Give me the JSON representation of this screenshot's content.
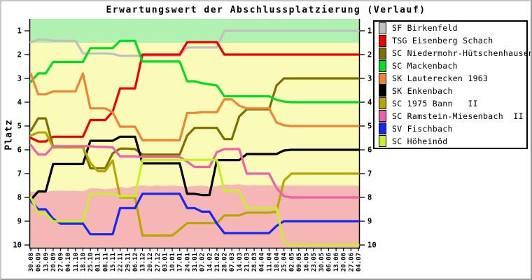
{
  "window": {
    "background": "#ffffff",
    "frame_color": "#c6c6c6"
  },
  "chart": {
    "title": "Erwartungswert der Abschlussplatzierung (Verlauf)",
    "y_axis_label": "Platz",
    "platz_ticks": [
      "1",
      "2",
      "3",
      "4",
      "5",
      "6",
      "7",
      "8",
      "9",
      "10"
    ],
    "bands": {
      "promotion_color": "#b0f0b0",
      "neutral_color": "#fafab9",
      "relegation_color": "#f7b6b6",
      "promotion_cutoff": 1.5,
      "relegation_boundary": [
        7.75,
        7.78,
        7.78,
        7.72,
        7.72,
        7.73,
        7.72,
        7.74,
        7.62,
        7.62,
        7.66,
        7.62,
        7.56,
        7.6,
        7.52,
        7.5,
        7.53,
        7.49,
        7.52,
        7.5,
        7.53,
        7.55,
        7.52,
        7.5,
        7.55,
        7.52,
        7.46,
        7.48,
        7.45,
        7.5,
        7.48,
        7.5,
        7.49,
        7.51,
        7.5,
        7.5,
        7.5,
        7.5,
        7.5,
        7.5,
        7.5,
        7.5,
        7.5,
        7.5,
        7.5
      ]
    }
  },
  "chart_data": {
    "type": "line",
    "title": "Erwartungswert der Abschlussplatzierung (Verlauf)",
    "xlabel": "",
    "ylabel": "Platz",
    "ylim": [
      10.2,
      0.5
    ],
    "y_inverted": true,
    "grid": false,
    "legend_position": "right",
    "x": [
      "30.08",
      "06.09",
      "13.09",
      "20.09",
      "27.09",
      "04.10",
      "11.10",
      "18.10",
      "25.10",
      "01.11",
      "08.11",
      "15.11",
      "22.11",
      "29.11",
      "06.12",
      "13.12",
      "20.12",
      "27.12",
      "03.01",
      "10.01",
      "17.01",
      "24.01",
      "31.01",
      "07.02",
      "14.02",
      "21.02",
      "28.02",
      "07.03",
      "14.03",
      "21.03",
      "28.03",
      "04.04",
      "11.04",
      "18.04",
      "25.04",
      "02.05",
      "09.05",
      "16.05",
      "23.05",
      "30.05",
      "06.06",
      "13.06",
      "20.06",
      "27.06",
      "04.07"
    ],
    "series": [
      {
        "name": "SF Birkenfeld",
        "color": "#c0c0c0",
        "values": [
          1.48,
          1.37,
          1.37,
          1.42,
          1.42,
          1.42,
          1.42,
          1.95,
          1.95,
          1.95,
          1.95,
          1.97,
          2.05,
          2.05,
          2.05,
          2.05,
          2.05,
          2.05,
          2.05,
          2.05,
          2.05,
          1.7,
          1.7,
          1.7,
          1.7,
          1.7,
          1.0,
          1.0,
          1.0,
          1.0,
          1.0,
          1.0,
          1.0,
          1.0,
          1.0,
          1.0,
          1.0,
          1.0,
          1.0,
          1.0,
          1.0,
          1.0,
          1.0,
          1.0,
          1.0
        ]
      },
      {
        "name": "TSG Eisenberg Schach",
        "color": "#ee0000",
        "values": [
          5.5,
          5.65,
          5.65,
          5.45,
          5.45,
          5.45,
          5.45,
          5.45,
          4.75,
          4.75,
          4.75,
          4.4,
          3.42,
          3.42,
          3.42,
          2.0,
          2.0,
          2.0,
          2.0,
          2.0,
          2.0,
          1.48,
          1.48,
          1.48,
          1.48,
          1.48,
          2.0,
          2.0,
          2.0,
          2.0,
          2.0,
          2.0,
          2.0,
          2.0,
          2.0,
          2.0,
          2.0,
          2.0,
          2.0,
          2.0,
          2.0,
          2.0,
          2.0,
          2.0,
          2.0
        ]
      },
      {
        "name": "SC Niedermohr-Hütschenhausen  II",
        "color": "#7d7000",
        "values": [
          5.2,
          4.68,
          4.68,
          5.87,
          5.87,
          5.87,
          5.87,
          5.87,
          6.78,
          6.78,
          6.78,
          6.15,
          5.95,
          5.95,
          5.97,
          6.2,
          6.2,
          6.2,
          6.2,
          6.2,
          6.2,
          5.4,
          5.08,
          5.08,
          5.08,
          5.08,
          5.55,
          5.55,
          4.6,
          4.3,
          4.3,
          4.3,
          4.3,
          3.3,
          3.0,
          3.0,
          3.0,
          3.0,
          3.0,
          3.0,
          3.0,
          3.0,
          3.0,
          3.0,
          3.0
        ]
      },
      {
        "name": "SC Mackenbach",
        "color": "#00dd22",
        "values": [
          3.15,
          2.79,
          2.79,
          2.31,
          2.31,
          2.31,
          2.31,
          2.31,
          1.73,
          1.73,
          1.73,
          1.73,
          1.42,
          1.42,
          1.42,
          2.29,
          2.29,
          2.29,
          2.29,
          2.29,
          2.29,
          3.12,
          3.12,
          3.2,
          3.25,
          3.3,
          3.75,
          3.75,
          3.75,
          3.75,
          3.75,
          3.75,
          3.75,
          3.9,
          3.97,
          4.0,
          4.0,
          4.0,
          4.0,
          4.0,
          4.0,
          4.0,
          4.0,
          4.0,
          4.0
        ]
      },
      {
        "name": "SK Lauterecken 1963",
        "color": "#f08433",
        "values": [
          2.8,
          3.67,
          3.67,
          3.55,
          3.55,
          3.55,
          3.55,
          2.79,
          4.26,
          4.26,
          4.26,
          4.42,
          5.03,
          5.03,
          5.03,
          5.6,
          5.6,
          5.6,
          5.6,
          5.6,
          5.6,
          4.45,
          4.45,
          4.42,
          4.42,
          4.42,
          3.88,
          3.88,
          4.15,
          4.26,
          4.26,
          4.26,
          4.26,
          4.85,
          4.97,
          5.0,
          5.0,
          5.0,
          5.0,
          5.0,
          5.0,
          5.0,
          5.0,
          5.0,
          5.0
        ]
      },
      {
        "name": "SK Enkenbach",
        "color": "#000000",
        "values": [
          8.1,
          7.75,
          7.75,
          6.6,
          6.6,
          6.6,
          6.6,
          6.6,
          5.62,
          5.62,
          5.62,
          5.62,
          5.45,
          5.45,
          5.45,
          6.57,
          6.57,
          6.57,
          6.57,
          6.57,
          6.57,
          7.85,
          7.85,
          7.9,
          7.9,
          6.43,
          6.43,
          6.43,
          6.43,
          6.18,
          6.18,
          6.18,
          6.18,
          6.18,
          6.03,
          6.0,
          6.0,
          6.0,
          6.0,
          6.0,
          6.0,
          6.0,
          6.0,
          6.0,
          6.0
        ]
      },
      {
        "name": "SC 1975 Bann   II",
        "color": "#b5a700",
        "values": [
          5.4,
          5.27,
          5.27,
          5.9,
          5.9,
          5.9,
          5.9,
          5.9,
          6.55,
          6.9,
          6.9,
          6.45,
          8.0,
          8.0,
          8.0,
          9.6,
          9.6,
          9.6,
          9.6,
          9.6,
          9.35,
          9.08,
          9.08,
          9.08,
          9.08,
          9.08,
          8.76,
          8.76,
          8.76,
          8.64,
          8.64,
          8.64,
          8.64,
          8.6,
          7.3,
          7.0,
          7.0,
          7.0,
          7.0,
          7.0,
          7.0,
          7.0,
          7.0,
          7.0,
          7.0
        ]
      },
      {
        "name": "SC Ramstein-Miesenbach  II",
        "color": "#f060a8",
        "values": [
          5.8,
          6.2,
          6.2,
          5.85,
          5.85,
          5.85,
          5.85,
          5.85,
          5.85,
          5.88,
          5.88,
          5.9,
          6.28,
          6.28,
          6.28,
          6.3,
          6.3,
          6.3,
          6.3,
          6.3,
          6.3,
          6.5,
          6.72,
          6.72,
          6.72,
          6.1,
          5.97,
          5.97,
          5.97,
          7.0,
          7.0,
          7.0,
          7.0,
          7.6,
          7.95,
          8.0,
          8.0,
          8.0,
          8.0,
          8.0,
          8.0,
          8.0,
          8.0,
          8.0,
          8.0
        ]
      },
      {
        "name": "SV Fischbach",
        "color": "#1428f0",
        "values": [
          8.15,
          8.5,
          8.5,
          8.9,
          9.1,
          9.1,
          9.1,
          9.1,
          9.55,
          9.55,
          9.55,
          9.55,
          8.45,
          8.45,
          8.45,
          7.85,
          7.85,
          7.85,
          7.85,
          7.85,
          7.85,
          8.45,
          8.45,
          8.6,
          8.6,
          9.1,
          9.5,
          9.5,
          9.5,
          9.5,
          9.5,
          9.5,
          9.5,
          9.2,
          9.0,
          9.0,
          9.0,
          9.0,
          9.0,
          9.0,
          9.0,
          9.0,
          9.0,
          9.0,
          9.0
        ]
      },
      {
        "name": "SC Höheinöd",
        "color": "#c8f028",
        "values": [
          8.0,
          8.68,
          8.68,
          9.0,
          9.0,
          9.0,
          9.0,
          9.0,
          7.85,
          7.85,
          7.85,
          7.85,
          7.95,
          7.95,
          7.95,
          6.42,
          6.42,
          6.42,
          6.42,
          6.42,
          6.42,
          6.42,
          6.42,
          6.42,
          6.42,
          6.42,
          7.73,
          7.73,
          7.73,
          8.45,
          8.45,
          8.45,
          8.45,
          8.45,
          9.9,
          10.0,
          10.0,
          10.0,
          10.0,
          10.0,
          10.0,
          10.0,
          10.0,
          10.0,
          10.0
        ]
      }
    ]
  }
}
